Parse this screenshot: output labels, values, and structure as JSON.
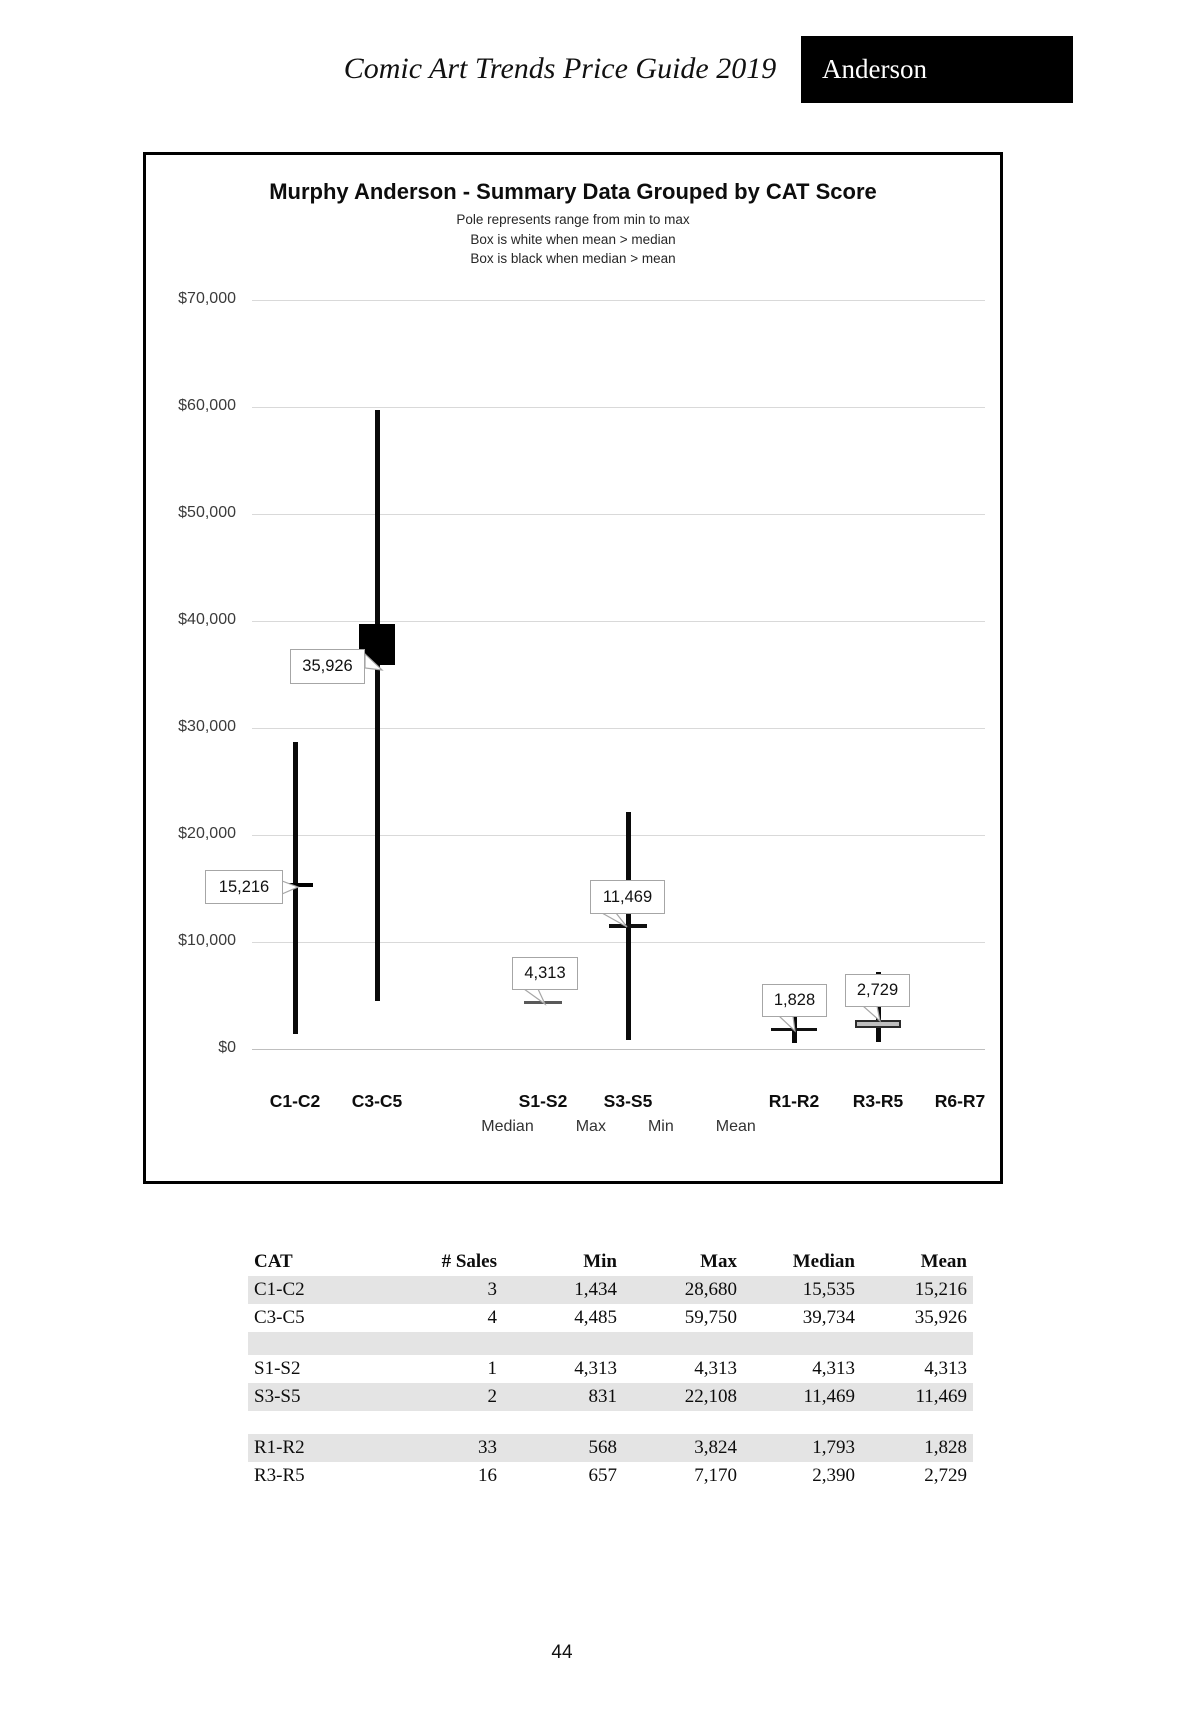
{
  "page": {
    "header_title": "Comic Art Trends Price Guide 2019",
    "header_tab": "Anderson",
    "page_number": "44"
  },
  "chart": {
    "title": "Murphy Anderson - Summary Data Grouped by CAT Score",
    "subtitle_lines": [
      "Pole represents range from min to max",
      "Box is white when mean > median",
      "Box is black when median > mean"
    ]
  },
  "chart_data": {
    "type": "bar",
    "subtype": "min-max-pole-with-median-mean-box",
    "title": "Murphy Anderson - Summary Data Grouped by CAT Score",
    "categories": [
      "C1-C2",
      "C3-C5",
      "S1-S2",
      "S3-S5",
      "R1-R2",
      "R3-R5",
      "R6-R7"
    ],
    "series": [
      {
        "category": "C1-C2",
        "min": 1434,
        "max": 28680,
        "median": 15535,
        "mean": 15216,
        "callout": "15,216"
      },
      {
        "category": "C3-C5",
        "min": 4485,
        "max": 59750,
        "median": 39734,
        "mean": 35926,
        "callout": "35,926"
      },
      {
        "category": "S1-S2",
        "min": 4313,
        "max": 4313,
        "median": 4313,
        "mean": 4313,
        "callout": "4,313"
      },
      {
        "category": "S3-S5",
        "min": 831,
        "max": 22108,
        "median": 11469,
        "mean": 11469,
        "callout": "11,469"
      },
      {
        "category": "R1-R2",
        "min": 568,
        "max": 3824,
        "median": 1793,
        "mean": 1828,
        "callout": "1,828"
      },
      {
        "category": "R3-R5",
        "min": 657,
        "max": 7170,
        "median": 2390,
        "mean": 2729,
        "callout": "2,729"
      },
      {
        "category": "R6-R7"
      }
    ],
    "ylim": [
      0,
      70000
    ],
    "ytick_step": 10000,
    "ytick_labels": [
      "$70,000",
      "$60,000",
      "$50,000",
      "$40,000",
      "$30,000",
      "$20,000",
      "$10,000",
      "$0"
    ],
    "legend": [
      "Median",
      "Max",
      "Min",
      "Mean"
    ],
    "legend_position": "bottom",
    "grid": true,
    "colors": {
      "pole": "#0a0a0a",
      "grid": "#d9d9d9",
      "black_box": "#000000",
      "white_box": "#ffffff",
      "gray_marker": "#595959"
    }
  },
  "table": {
    "columns": [
      "CAT",
      "# Sales",
      "Min",
      "Max",
      "Median",
      "Mean"
    ],
    "rows": [
      [
        "C1-C2",
        "3",
        "1,434",
        "28,680",
        "15,535",
        "15,216"
      ],
      [
        "C3-C5",
        "4",
        "4,485",
        "59,750",
        "39,734",
        "35,926"
      ],
      [
        "",
        "",
        "",
        "",
        "",
        ""
      ],
      [
        "S1-S2",
        "1",
        "4,313",
        "4,313",
        "4,313",
        "4,313"
      ],
      [
        "S3-S5",
        "2",
        "831",
        "22,108",
        "11,469",
        "11,469"
      ],
      [
        "",
        "",
        "",
        "",
        "",
        ""
      ],
      [
        "R1-R2",
        "33",
        "568",
        "3,824",
        "1,793",
        "1,828"
      ],
      [
        "R3-R5",
        "16",
        "657",
        "7,170",
        "2,390",
        "2,729"
      ]
    ],
    "band_color": "#e4e4e4"
  }
}
